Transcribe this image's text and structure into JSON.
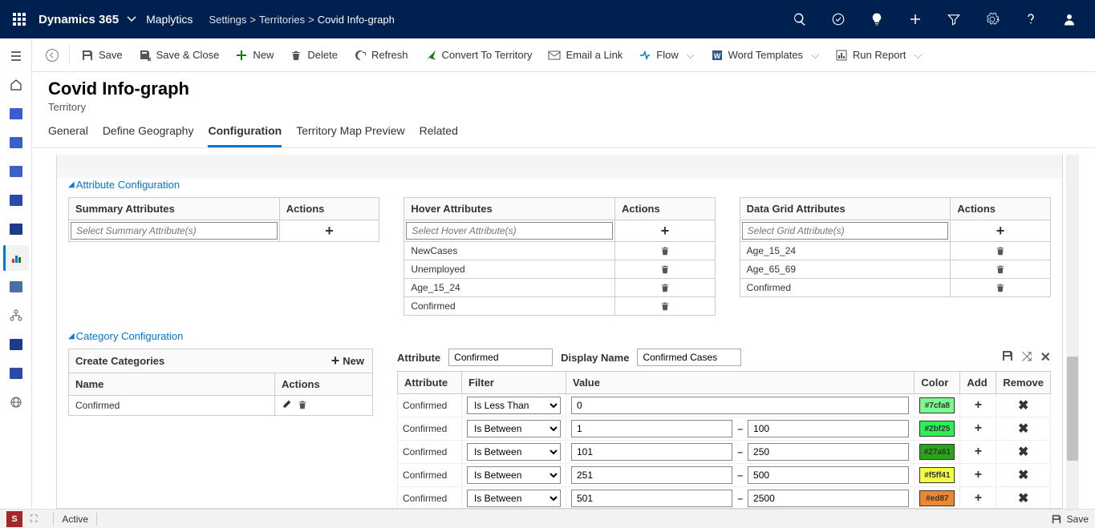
{
  "nav": {
    "brand": "Dynamics 365",
    "product": "Maplytics",
    "crumbs": [
      "Settings",
      "Territories",
      "Covid Info-graph"
    ]
  },
  "commands": {
    "save": "Save",
    "saveclose": "Save & Close",
    "new": "New",
    "delete": "Delete",
    "refresh": "Refresh",
    "convert": "Convert To Territory",
    "email": "Email a Link",
    "flow": "Flow",
    "word": "Word Templates",
    "run": "Run Report"
  },
  "header": {
    "title": "Covid Info-graph",
    "subtitle": "Territory"
  },
  "tabs": [
    "General",
    "Define Geography",
    "Configuration",
    "Territory Map Preview",
    "Related"
  ],
  "active_tab": 2,
  "sections": {
    "attr": "Attribute Configuration",
    "cat": "Category Configuration"
  },
  "attr": {
    "summary": {
      "label": "Summary Attributes",
      "actions": "Actions",
      "placeholder": "Select Summary Attribute(s)",
      "items": []
    },
    "hover": {
      "label": "Hover Attributes",
      "actions": "Actions",
      "placeholder": "Select Hover Attribute(s)",
      "items": [
        "NewCases",
        "Unemployed",
        "Age_15_24",
        "Confirmed"
      ]
    },
    "grid": {
      "label": "Data Grid Attributes",
      "actions": "Actions",
      "placeholder": "Select Grid Attribute(s)",
      "items": [
        "Age_15_24",
        "Age_65_69",
        "Confirmed"
      ]
    }
  },
  "cat": {
    "create": "Create Categories",
    "new": "New",
    "name_hdr": "Name",
    "actions_hdr": "Actions",
    "rows": [
      "Confirmed"
    ]
  },
  "rules": {
    "attribute_label": "Attribute",
    "attribute_value": "Confirmed",
    "display_label": "Display Name",
    "display_value": "Confirmed Cases",
    "headers": {
      "attr": "Attribute",
      "filter": "Filter",
      "value": "Value",
      "color": "Color",
      "add": "Add",
      "remove": "Remove"
    },
    "rows": [
      {
        "attr": "Confirmed",
        "filter": "Is Less Than",
        "v1": "0",
        "v2": "",
        "color": "#7cfa8",
        "bg": "#7cfa8e",
        "single": true
      },
      {
        "attr": "Confirmed",
        "filter": "Is Between",
        "v1": "1",
        "v2": "100",
        "color": "#2bf25",
        "bg": "#2bf253"
      },
      {
        "attr": "Confirmed",
        "filter": "Is Between",
        "v1": "101",
        "v2": "250",
        "color": "#27a61",
        "bg": "#27a618"
      },
      {
        "attr": "Confirmed",
        "filter": "Is Between",
        "v1": "251",
        "v2": "500",
        "color": "#f5ff41",
        "bg": "#f5ff41"
      },
      {
        "attr": "Confirmed",
        "filter": "Is Between",
        "v1": "501",
        "v2": "2500",
        "color": "#ed87",
        "bg": "#ed8732"
      }
    ]
  },
  "bottom": {
    "active": "Active",
    "save": "Save",
    "s": "S"
  },
  "leftrail": [
    {
      "type": "hamburger"
    },
    {
      "type": "home"
    },
    {
      "color": "#3a5fcd"
    },
    {
      "color": "#3a5fcd"
    },
    {
      "color": "#3a5fcd"
    },
    {
      "color": "#2a4aa8"
    },
    {
      "color": "#1e3a8a"
    },
    {
      "type": "chart",
      "selected": true
    },
    {
      "color": "#4a6fa5"
    },
    {
      "type": "org"
    },
    {
      "color": "#1e3a8a"
    },
    {
      "color": "#2a4aa8"
    },
    {
      "type": "globe"
    }
  ]
}
